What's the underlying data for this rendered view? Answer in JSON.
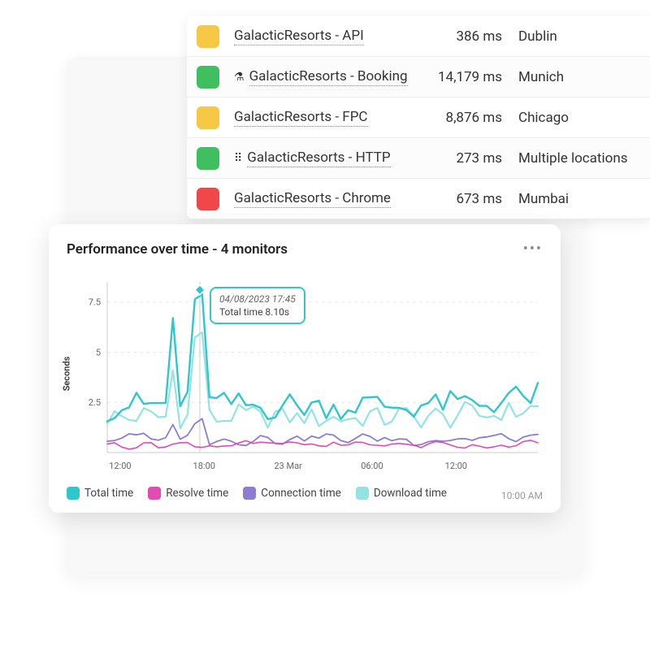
{
  "colors": {
    "status_yellow": "#f5c944",
    "status_green": "#3fbf5f",
    "status_red": "#f04848",
    "card_bg": "#ffffff",
    "bg_card": "#f8f8f8",
    "gridline": "#e8e8e8",
    "axis_text": "#666666"
  },
  "monitors": [
    {
      "status": "yellow",
      "icon": "",
      "name": "GalacticResorts - API",
      "time": "386 ms",
      "location": "Dublin"
    },
    {
      "status": "green",
      "icon": "flask",
      "name": "GalacticResorts - Booking",
      "time": "14,179 ms",
      "location": "Munich"
    },
    {
      "status": "yellow",
      "icon": "",
      "name": "GalacticResorts - FPC",
      "time": "8,876 ms",
      "location": "Chicago"
    },
    {
      "status": "green",
      "icon": "grid",
      "name": "GalacticResorts - HTTP",
      "time": "273 ms",
      "location": "Multiple locations"
    },
    {
      "status": "red",
      "icon": "",
      "name": "GalacticResorts - Chrome",
      "time": "673 ms",
      "location": "Mumbai"
    }
  ],
  "chart": {
    "title": "Performance over time - 4 monitors",
    "card_timestamp": "10:00 AM",
    "y_label": "Seconds",
    "ylim": [
      0,
      8.5
    ],
    "yticks": [
      2.5,
      5,
      7.5
    ],
    "ytick_labels": [
      "2.5",
      "5",
      "7.5"
    ],
    "x_labels": [
      {
        "u": 0.03,
        "text": "12:00"
      },
      {
        "u": 0.225,
        "text": "18:00"
      },
      {
        "u": 0.42,
        "text": "23 Mar"
      },
      {
        "u": 0.615,
        "text": "06:00"
      },
      {
        "u": 0.81,
        "text": "12:00"
      }
    ],
    "n_points": 60,
    "tooltip": {
      "u": 0.215,
      "timestamp": "04/08/2023 17:45",
      "label": "Total time 8.10s",
      "marker_y": 8.1
    },
    "series": {
      "total": {
        "label": "Total time",
        "color": "#2fc6cc",
        "width": 2.4,
        "base": 2.2,
        "amp": 0.7,
        "spikes": [
          {
            "u": 0.15,
            "h": 6.8
          },
          {
            "u": 0.215,
            "h": 8.1
          }
        ]
      },
      "download": {
        "label": "Download time",
        "color": "#93e3e3",
        "width": 2.2,
        "base": 1.6,
        "amp": 0.6,
        "spikes": [
          {
            "u": 0.15,
            "h": 4.2
          },
          {
            "u": 0.215,
            "h": 6.2
          }
        ]
      },
      "connection": {
        "label": "Connection time",
        "color": "#8d7bd4",
        "width": 1.8,
        "base": 0.55,
        "amp": 0.25,
        "spikes": [
          {
            "u": 0.15,
            "h": 1.5
          },
          {
            "u": 0.215,
            "h": 1.9
          }
        ]
      },
      "resolve": {
        "label": "Resolve time",
        "color": "#e24cb0",
        "width": 1.6,
        "base": 0.25,
        "amp": 0.12,
        "spikes": []
      }
    },
    "legend_order": [
      "total",
      "resolve",
      "connection",
      "download"
    ]
  }
}
